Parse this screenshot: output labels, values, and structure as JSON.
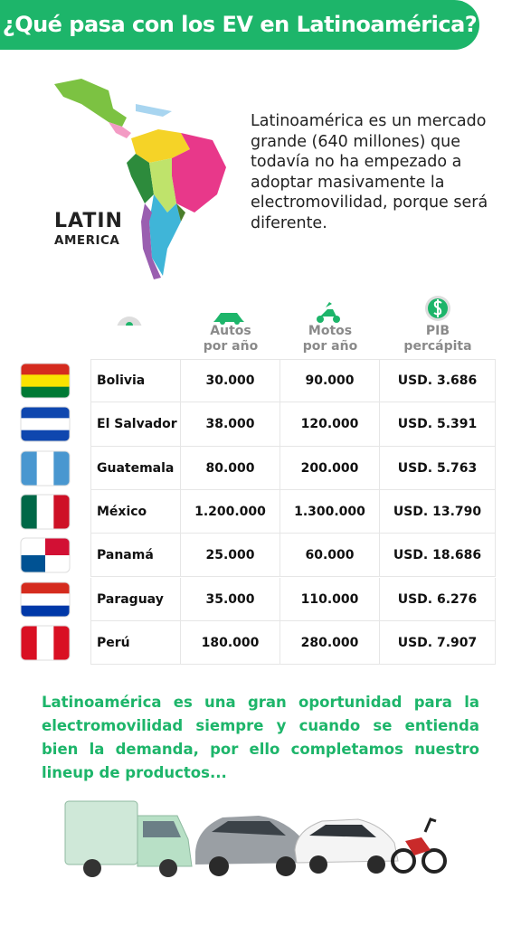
{
  "header": {
    "title": "¿Qué pasa con los EV en Latinoamérica?"
  },
  "map": {
    "label_line1": "LATIN",
    "label_line2": "AMERICA"
  },
  "intro": "Latinoamérica es un mercado grande (640 millones) que todavía no ha empezado a adoptar masivamente la electromovilidad, porque será diferente.",
  "table": {
    "columns": [
      "Autos por año",
      "Motos por año",
      "PIB percápita"
    ],
    "rows": [
      [
        "Bolivia",
        "30.000",
        "90.000",
        "USD. 3.686"
      ],
      [
        "El Salvador",
        "38.000",
        "120.000",
        "USD. 5.391"
      ],
      [
        "Guatemala",
        "80.000",
        "200.000",
        "USD. 5.763"
      ],
      [
        "México",
        "1.200.000",
        "1.300.000",
        "USD. 13.790"
      ],
      [
        "Panamá",
        "25.000",
        "60.000",
        "USD. 18.686"
      ],
      [
        "Paraguay",
        "35.000",
        "110.000",
        "USD. 6.276"
      ],
      [
        "Perú",
        "180.000",
        "280.000",
        "USD. 7.907"
      ]
    ]
  },
  "footer": "Latinoamérica es una gran oportunidad para la electromovilidad siempre y cuando se entienda bien la demanda, por ello completamos nuestro lineup de productos..."
}
